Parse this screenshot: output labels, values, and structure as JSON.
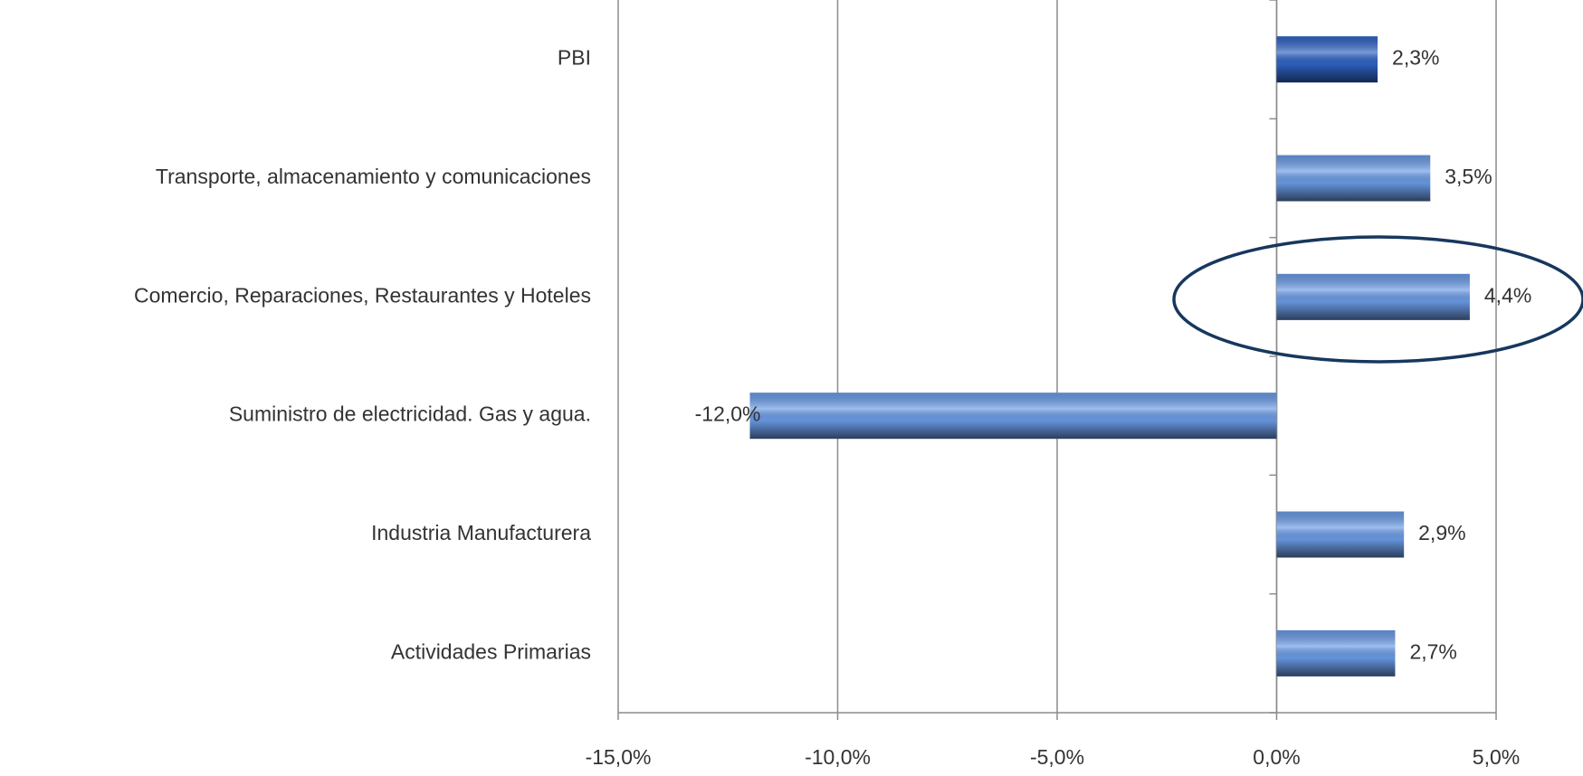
{
  "chart_data": {
    "type": "bar",
    "orientation": "horizontal",
    "categories": [
      "PBI",
      "Transporte, almacenamiento y comunicaciones",
      "Comercio, Reparaciones, Restaurantes y Hoteles",
      "Suministro de electricidad. Gas y agua.",
      "Industria Manufacturera",
      "Actividades Primarias"
    ],
    "values": [
      2.3,
      3.5,
      4.4,
      -12.0,
      2.9,
      2.7
    ],
    "value_labels": [
      "2,3%",
      "3,5%",
      "4,4%",
      "-12,0%",
      "2,9%",
      "2,7%"
    ],
    "colors": [
      "#2f63c4",
      "#6a9be6",
      "#6a9be6",
      "#6a9be6",
      "#6a9be6",
      "#6a9be6"
    ],
    "xlim": [
      -15,
      5
    ],
    "xticks": [
      {
        "value": -15,
        "label": "-15,0%"
      },
      {
        "value": -10,
        "label": "-10,0%"
      },
      {
        "value": -5,
        "label": "-5,0%"
      },
      {
        "value": 0,
        "label": "0,0%"
      },
      {
        "value": 5,
        "label": "5,0%"
      }
    ],
    "grid": true
  }
}
